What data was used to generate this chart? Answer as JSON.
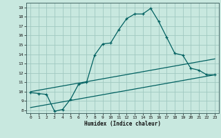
{
  "xlabel": "Humidex (Indice chaleur)",
  "bg_color": "#c8e8df",
  "grid_color": "#a0c8c0",
  "line_color": "#006060",
  "xlim": [
    -0.5,
    23.5
  ],
  "ylim": [
    7.7,
    19.5
  ],
  "xticks": [
    0,
    1,
    2,
    3,
    4,
    5,
    6,
    7,
    8,
    9,
    10,
    11,
    12,
    13,
    14,
    15,
    16,
    17,
    18,
    19,
    20,
    21,
    22,
    23
  ],
  "yticks": [
    8,
    9,
    10,
    11,
    12,
    13,
    14,
    15,
    16,
    17,
    18,
    19
  ],
  "line1_x": [
    0,
    1,
    2,
    3,
    4,
    5,
    6,
    7,
    8,
    9,
    10,
    11,
    12,
    13,
    14,
    15,
    16,
    17,
    18,
    19,
    20,
    21,
    22,
    23
  ],
  "line1_y": [
    9.9,
    9.8,
    9.7,
    7.9,
    8.1,
    9.2,
    10.8,
    11.0,
    13.9,
    15.1,
    15.2,
    16.6,
    17.8,
    18.3,
    18.3,
    18.9,
    17.5,
    15.8,
    14.1,
    13.9,
    12.5,
    12.3,
    11.8,
    11.8
  ],
  "line2_x": [
    0,
    23
  ],
  "line2_y": [
    10.0,
    13.5
  ],
  "line3_x": [
    0,
    23
  ],
  "line3_y": [
    8.3,
    11.8
  ]
}
